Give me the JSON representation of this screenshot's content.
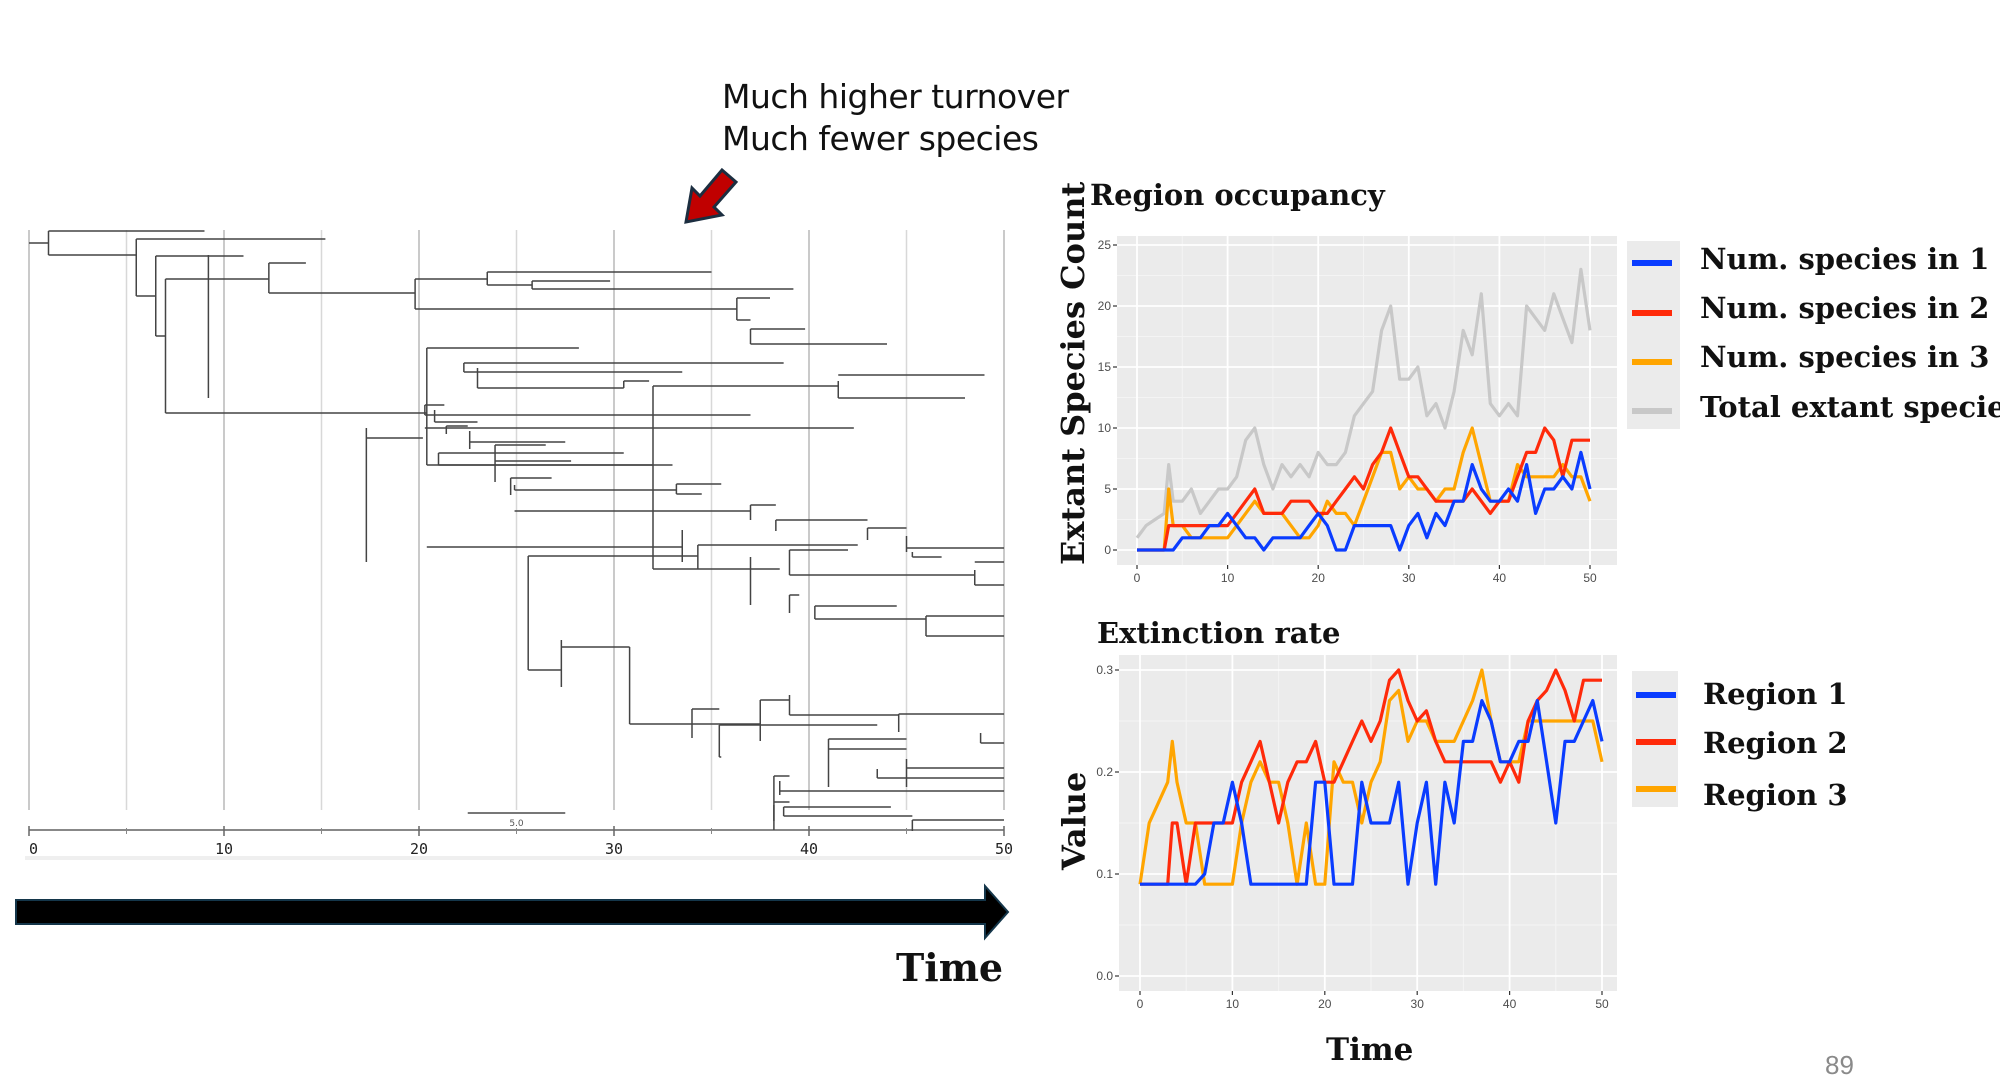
{
  "annotation": {
    "line1": "Much higher turnover",
    "line2": "Much fewer species",
    "arrow_color": "#c00000"
  },
  "time_arrow": {
    "label": "Time"
  },
  "page_number": "89",
  "colors": {
    "region1": "#0a3cff",
    "region2": "#ff2a0a",
    "region3": "#ffa500",
    "total": "#c8c8c8",
    "panel_bg": "#ebebeb"
  },
  "chart_data": [
    {
      "type": "tree",
      "name": "phylogeny",
      "title": "",
      "xlabel": "",
      "xlim": [
        0,
        50
      ],
      "x_ticks": [
        "0",
        "10",
        "20",
        "30",
        "40",
        "50"
      ],
      "scale_bar_label": "5.0",
      "scale_bar_length": 5,
      "grid": true
    },
    {
      "type": "line",
      "title": "Region occupancy",
      "xlabel": "",
      "ylabel": "Extant Species Count",
      "xlim": [
        0,
        50
      ],
      "ylim": [
        0,
        25
      ],
      "x_ticks": [
        "0",
        "10",
        "20",
        "30",
        "40",
        "50"
      ],
      "y_ticks": [
        "0",
        "5",
        "10",
        "15",
        "20",
        "25"
      ],
      "legend_position": "right",
      "x": [
        0,
        1,
        2,
        3,
        3.5,
        4,
        5,
        6,
        7,
        8,
        9,
        10,
        11,
        12,
        13,
        14,
        15,
        16,
        17,
        18,
        19,
        20,
        21,
        22,
        23,
        24,
        25,
        26,
        27,
        28,
        29,
        30,
        31,
        32,
        33,
        34,
        35,
        36,
        37,
        38,
        39,
        40,
        41,
        42,
        43,
        44,
        45,
        46,
        47,
        48,
        49,
        50
      ],
      "series": [
        {
          "name": "Num. species in 1",
          "color": "#0a3cff",
          "values": [
            0,
            0,
            0,
            0,
            0,
            0,
            1,
            1,
            1,
            2,
            2,
            3,
            2,
            1,
            1,
            0,
            1,
            1,
            1,
            1,
            2,
            3,
            2,
            0,
            0,
            2,
            2,
            2,
            2,
            2,
            0,
            2,
            3,
            1,
            3,
            2,
            4,
            4,
            7,
            5,
            4,
            4,
            5,
            4,
            7,
            3,
            5,
            5,
            6,
            5,
            8,
            5
          ]
        },
        {
          "name": "Num. species in 2",
          "color": "#ff2a0a",
          "values": [
            0,
            0,
            0,
            0,
            2,
            2,
            2,
            2,
            2,
            2,
            2,
            2,
            3,
            4,
            5,
            3,
            3,
            3,
            4,
            4,
            4,
            3,
            3,
            4,
            5,
            6,
            5,
            7,
            8,
            10,
            8,
            6,
            6,
            5,
            4,
            4,
            4,
            4,
            5,
            4,
            3,
            4,
            4,
            6,
            8,
            8,
            10,
            9,
            6,
            9,
            9,
            9
          ]
        },
        {
          "name": "Num. species in 3",
          "color": "#ffa500",
          "values": [
            0,
            0,
            0,
            0,
            5,
            2,
            2,
            1,
            1,
            1,
            1,
            1,
            2,
            3,
            4,
            3,
            3,
            3,
            2,
            1,
            1,
            2,
            4,
            3,
            3,
            2,
            4,
            6,
            8,
            8,
            5,
            6,
            5,
            5,
            4,
            5,
            5,
            8,
            10,
            7,
            4,
            4,
            4,
            7,
            6,
            6,
            6,
            6,
            7,
            6,
            6,
            4
          ]
        },
        {
          "name": "Total extant species",
          "color": "#c8c8c8",
          "values": [
            1,
            2,
            2.5,
            3,
            7,
            4,
            4,
            5,
            3,
            4,
            5,
            5,
            6,
            9,
            10,
            7,
            5,
            7,
            6,
            7,
            6,
            8,
            7,
            7,
            8,
            11,
            12,
            13,
            18,
            20,
            14,
            14,
            15,
            11,
            12,
            10,
            13,
            18,
            16,
            21,
            12,
            11,
            12,
            11,
            20,
            19,
            18,
            21,
            19,
            17,
            23,
            18
          ]
        }
      ]
    },
    {
      "type": "line",
      "title": "Extinction rate",
      "xlabel": "Time",
      "ylabel": "Value",
      "xlim": [
        0,
        50
      ],
      "ylim": [
        0,
        0.3
      ],
      "x_ticks": [
        "0",
        "10",
        "20",
        "30",
        "40",
        "50"
      ],
      "y_ticks": [
        "0.0",
        "0.1",
        "0.2",
        "0.3"
      ],
      "legend_position": "right",
      "x": [
        0,
        1,
        2,
        3,
        3.5,
        4,
        5,
        6,
        7,
        8,
        9,
        10,
        11,
        12,
        13,
        14,
        15,
        16,
        17,
        18,
        19,
        20,
        21,
        22,
        23,
        24,
        25,
        26,
        27,
        28,
        29,
        30,
        31,
        32,
        33,
        34,
        35,
        36,
        37,
        38,
        39,
        40,
        41,
        42,
        43,
        44,
        45,
        46,
        47,
        48,
        49,
        50
      ],
      "series": [
        {
          "name": "Region 1",
          "color": "#0a3cff",
          "values": [
            0.09,
            0.09,
            0.09,
            0.09,
            0.09,
            0.09,
            0.09,
            0.09,
            0.1,
            0.15,
            0.15,
            0.19,
            0.15,
            0.09,
            0.09,
            0.09,
            0.09,
            0.09,
            0.09,
            0.09,
            0.19,
            0.19,
            0.09,
            0.09,
            0.09,
            0.19,
            0.15,
            0.15,
            0.15,
            0.19,
            0.09,
            0.15,
            0.19,
            0.09,
            0.19,
            0.15,
            0.23,
            0.23,
            0.27,
            0.25,
            0.21,
            0.21,
            0.23,
            0.23,
            0.27,
            0.21,
            0.15,
            0.23,
            0.23,
            0.25,
            0.27,
            0.23
          ]
        },
        {
          "name": "Region 2",
          "color": "#ff2a0a",
          "values": [
            0.09,
            0.09,
            0.09,
            0.09,
            0.15,
            0.15,
            0.09,
            0.15,
            0.15,
            0.15,
            0.15,
            0.15,
            0.19,
            0.21,
            0.23,
            0.19,
            0.15,
            0.19,
            0.21,
            0.21,
            0.23,
            0.19,
            0.19,
            0.21,
            0.23,
            0.25,
            0.23,
            0.25,
            0.29,
            0.3,
            0.27,
            0.25,
            0.26,
            0.23,
            0.21,
            0.21,
            0.21,
            0.21,
            0.21,
            0.21,
            0.19,
            0.21,
            0.19,
            0.25,
            0.27,
            0.28,
            0.3,
            0.28,
            0.25,
            0.29,
            0.29,
            0.29
          ]
        },
        {
          "name": "Region 3",
          "color": "#ffa500",
          "values": [
            0.09,
            0.15,
            0.17,
            0.19,
            0.23,
            0.19,
            0.15,
            0.15,
            0.09,
            0.09,
            0.09,
            0.09,
            0.15,
            0.19,
            0.21,
            0.19,
            0.19,
            0.15,
            0.09,
            0.15,
            0.09,
            0.09,
            0.21,
            0.19,
            0.19,
            0.15,
            0.19,
            0.21,
            0.27,
            0.28,
            0.23,
            0.25,
            0.25,
            0.23,
            0.23,
            0.23,
            0.25,
            0.27,
            0.3,
            0.25,
            0.21,
            0.21,
            0.21,
            0.25,
            0.25,
            0.25,
            0.25,
            0.25,
            0.25,
            0.25,
            0.25,
            0.21
          ]
        }
      ]
    }
  ]
}
